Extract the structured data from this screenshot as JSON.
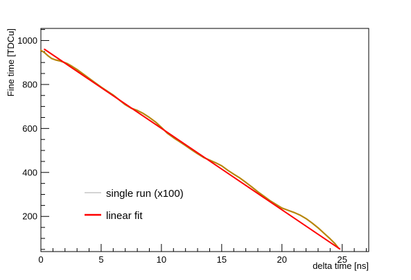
{
  "chart_data": {
    "type": "line",
    "title": "",
    "xlabel": "delta time [ns]",
    "ylabel": "Fine time [TDCu]",
    "xlim": [
      0,
      27.2
    ],
    "ylim": [
      40,
      1055
    ],
    "x_ticks": [
      0,
      5,
      10,
      15,
      20,
      25
    ],
    "y_ticks": [
      200,
      400,
      600,
      800,
      1000
    ],
    "grid": false,
    "legend_position": "lower-left",
    "colors": {
      "single_run": "#b8860b",
      "single_run_legend": "#aaaaaa",
      "linear_fit": "#ff0000",
      "axis": "#000000"
    },
    "series": [
      {
        "name": "single run (x100)",
        "kind": "data",
        "x": [
          0.0,
          0.3,
          0.6,
          0.9,
          1.2,
          1.5,
          1.8,
          2.2,
          2.6,
          3.0,
          3.5,
          4.0,
          4.5,
          5.0,
          5.5,
          6.0,
          6.5,
          7.0,
          7.5,
          8.0,
          8.5,
          9.0,
          9.5,
          10.0,
          10.5,
          11.0,
          11.5,
          12.0,
          12.5,
          13.0,
          13.5,
          14.0,
          14.5,
          15.0,
          15.5,
          16.0,
          16.5,
          17.0,
          17.5,
          18.0,
          18.5,
          19.0,
          19.5,
          20.0,
          20.5,
          21.0,
          21.5,
          22.0,
          22.5,
          23.0,
          23.5,
          24.0,
          24.4,
          24.7
        ],
        "y": [
          955,
          945,
          930,
          918,
          912,
          908,
          903,
          895,
          882,
          868,
          848,
          828,
          808,
          788,
          770,
          752,
          730,
          708,
          692,
          682,
          668,
          650,
          630,
          605,
          578,
          558,
          540,
          522,
          503,
          485,
          468,
          456,
          444,
          430,
          410,
          392,
          375,
          355,
          334,
          312,
          292,
          272,
          255,
          238,
          228,
          218,
          206,
          190,
          170,
          148,
          123,
          98,
          76,
          55
        ]
      },
      {
        "name": "linear fit",
        "kind": "fit",
        "x": [
          0.3,
          24.8
        ],
        "y": [
          960,
          52
        ]
      }
    ]
  }
}
